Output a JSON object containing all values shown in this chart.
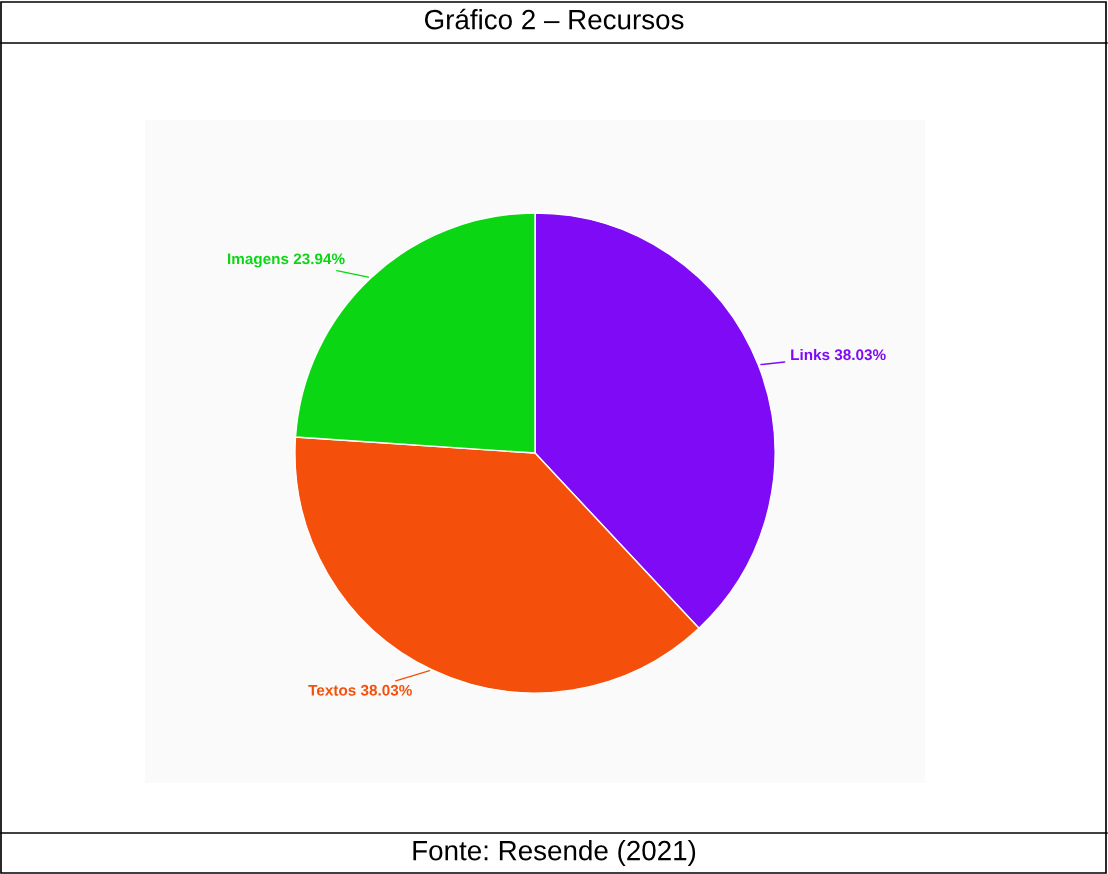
{
  "chart_data": {
    "type": "pie",
    "title": "Gráfico 2 – Recursos",
    "categories": [
      "Links",
      "Textos",
      "Imagens"
    ],
    "values": [
      38.03,
      38.03,
      23.94
    ],
    "value_labels": [
      "38.03%",
      "38.03%",
      "23.94%"
    ],
    "colors": [
      "#7f0af5",
      "#f4500b",
      "#0bd614"
    ],
    "annotations": [
      "Fonte: Resende (2021)"
    ]
  }
}
